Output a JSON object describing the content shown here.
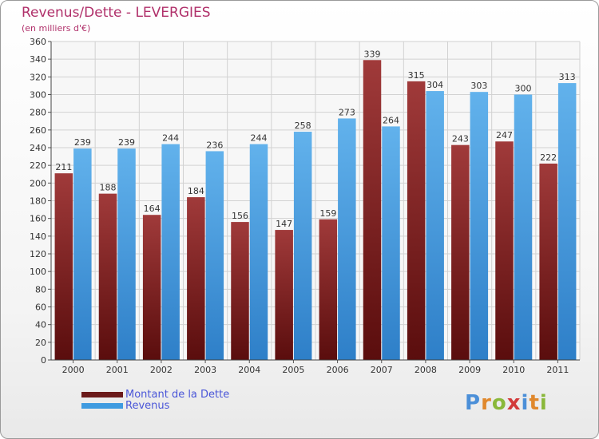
{
  "header": {
    "title": "Revenus/Dette - LEVERGIES",
    "subtitle": "(en milliers d'€)"
  },
  "legend": [
    {
      "label": "Montant de la Dette",
      "color": "#6b1a1a"
    },
    {
      "label": "Revenus",
      "color": "#3f9be0"
    }
  ],
  "logo": {
    "text": "Proxiti",
    "letters": [
      "P",
      "r",
      "o",
      "x",
      "i",
      "t",
      "i"
    ]
  },
  "colors": {
    "dette_dark": "#5a0d0d",
    "dette_light": "#a03a3a",
    "revenus_dark": "#2e7fc8",
    "revenus_light": "#62b2ec"
  },
  "chart_data": {
    "type": "bar",
    "categories": [
      "2000",
      "2001",
      "2002",
      "2003",
      "2004",
      "2005",
      "2006",
      "2007",
      "2008",
      "2009",
      "2010",
      "2011"
    ],
    "series": [
      {
        "name": "Montant de la Dette",
        "values": [
          211,
          188,
          164,
          184,
          156,
          147,
          159,
          339,
          315,
          243,
          247,
          222
        ]
      },
      {
        "name": "Revenus",
        "values": [
          239,
          239,
          244,
          236,
          244,
          258,
          273,
          264,
          304,
          303,
          300,
          313
        ]
      }
    ],
    "yticks": [
      0,
      20,
      40,
      60,
      80,
      100,
      120,
      140,
      160,
      180,
      200,
      220,
      240,
      260,
      280,
      300,
      320,
      340,
      360
    ],
    "ylim": [
      0,
      360
    ],
    "grid": true,
    "legend_position": "bottom-left"
  }
}
